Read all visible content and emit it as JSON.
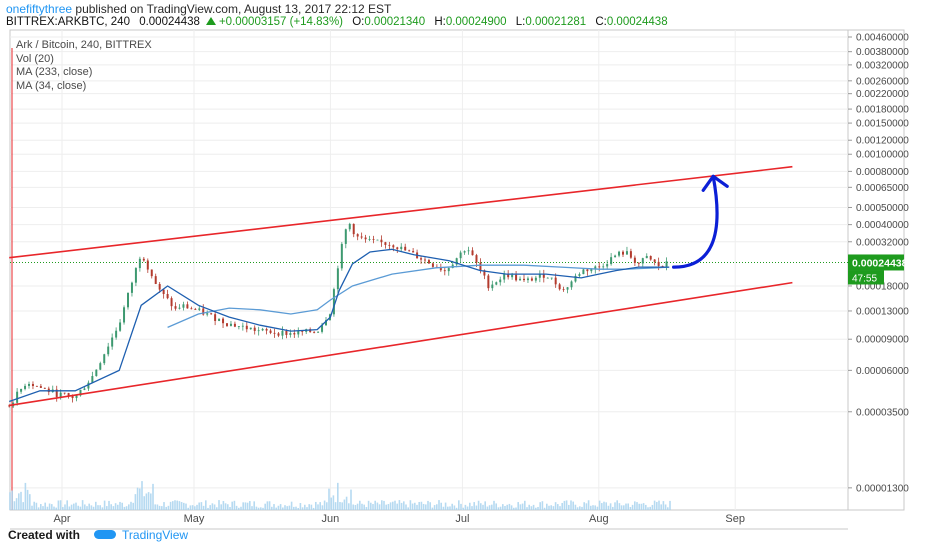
{
  "header": {
    "author": "onefiftythree",
    "published_text": "published on TradingView.com, August 13, 2017 22:12 EST",
    "symbol": "BITTREX:ARKBTC, 240",
    "last": "0.00024438",
    "change": "+0.00003157 (+14.83%)",
    "o_label": "O:",
    "o_value": "0.00021340",
    "h_label": "H:",
    "h_value": "0.00024900",
    "l_label": "L:",
    "l_value": "0.00021281",
    "c_label": "C:",
    "c_value": "0.00024438"
  },
  "legend": {
    "line1": "Ark / Bitcoin, 240, BITTREX",
    "line2": "Vol (20)",
    "line3": "MA (233, close)",
    "line4": "MA (34, close)"
  },
  "price_tag": {
    "value": "0.00024438",
    "countdown": "47:55"
  },
  "footer": {
    "created_with": "Created with",
    "brand": "TradingView"
  },
  "colors": {
    "up": "#3d9970",
    "down": "#b33b2e",
    "ma34": "#1e5fb0",
    "ma233": "#5b9bd5",
    "channel": "#e8262a",
    "arrow": "#0b1fd6",
    "price_tag": "#1e9b1e",
    "volume": "#a9d3ee"
  },
  "chart_data": {
    "type": "line",
    "title": "Ark / Bitcoin, 240, BITTREX",
    "y_scale": "log",
    "ylim": [
      1.2e-05,
      0.0046
    ],
    "y_ticks": [
      "0.00460000",
      "0.00380000",
      "0.00320000",
      "0.00260000",
      "0.00220000",
      "0.00180000",
      "0.00150000",
      "0.00120000",
      "0.00100000",
      "0.00080000",
      "0.00065000",
      "0.00050000",
      "0.00040000",
      "0.00032000",
      "0.00024438",
      "0.00018000",
      "0.00013000",
      "0.00009000",
      "0.00006000",
      "0.00003500",
      "0.00001300"
    ],
    "y_tick_values": [
      0.0046,
      0.0038,
      0.0032,
      0.0026,
      0.0022,
      0.0018,
      0.0015,
      0.0012,
      0.001,
      0.0008,
      0.00065,
      0.0005,
      0.0004,
      0.00032,
      0.00024438,
      0.00018,
      0.00013,
      9e-05,
      6e-05,
      3.5e-05,
      1.3e-05
    ],
    "x_ticks": [
      "Apr",
      "May",
      "Jun",
      "Jul",
      "Aug",
      "Sep"
    ],
    "x_tick_values": [
      0,
      30,
      61,
      91,
      122,
      153
    ],
    "x_unit": "days since Apr 1",
    "series": [
      {
        "name": "Price",
        "x": [
          -12,
          -8,
          -5,
          -1,
          3,
          7,
          13,
          18,
          22,
          24,
          26,
          27,
          31,
          38,
          45,
          52,
          58,
          61,
          63,
          65,
          67,
          70,
          75,
          80,
          87,
          92,
          97,
          101,
          105,
          110,
          114,
          118,
          122,
          126,
          128,
          131,
          133,
          136,
          138
        ],
        "values": [
          3.8e-05,
          5.2e-05,
          4.8e-05,
          4.4e-05,
          4.2e-05,
          5.6e-05,
          0.00011,
          0.00028,
          0.00017,
          0.00015,
          0.00013,
          0.00014,
          0.00013,
          0.00011,
          0.0001,
          9.7e-05,
          0.0001,
          0.00013,
          0.00026,
          0.00042,
          0.00034,
          0.00032,
          0.00031,
          0.00027,
          0.00022,
          0.0003,
          0.00018,
          0.00021,
          0.00019,
          0.00021,
          0.00017,
          0.00022,
          0.00023,
          0.00027,
          0.00028,
          0.00024,
          0.00026,
          0.00023,
          0.00024438
        ]
      },
      {
        "name": "MA (34, close)",
        "x": [
          -12,
          -5,
          3,
          13,
          18,
          24,
          31,
          38,
          45,
          52,
          58,
          61,
          63,
          66,
          70,
          75,
          80,
          88,
          95,
          101,
          110,
          118,
          122,
          126,
          131,
          136,
          138
        ],
        "values": [
          4e-05,
          4.6e-05,
          4.6e-05,
          6e-05,
          0.00014,
          0.00018,
          0.00014,
          0.00012,
          0.000108,
          0.0001,
          0.000102,
          0.00012,
          0.00017,
          0.00024,
          0.00028,
          0.00029,
          0.00027,
          0.00025,
          0.00022,
          0.00021,
          0.00021,
          0.0002,
          0.00021,
          0.00022,
          0.00023,
          0.00023,
          0.00023
        ]
      },
      {
        "name": "MA (233, close)",
        "x": [
          24,
          31,
          38,
          45,
          52,
          58,
          61,
          66,
          75,
          85,
          95,
          105,
          115,
          122,
          128,
          135,
          138
        ],
        "values": [
          0.000105,
          0.000125,
          0.000135,
          0.000132,
          0.000125,
          0.000132,
          0.00015,
          0.00018,
          0.00021,
          0.000228,
          0.000236,
          0.000236,
          0.000229,
          0.000224,
          0.000224,
          0.000228,
          0.00023
        ]
      }
    ],
    "annotations": [
      {
        "type": "channel-line",
        "x": [
          -12,
          166
        ],
        "values": [
          0.00026,
          0.00085
        ]
      },
      {
        "type": "channel-line",
        "x": [
          -12,
          166
        ],
        "values": [
          3.8e-05,
          0.000188
        ]
      },
      {
        "type": "arrow",
        "x": [
          139,
          145,
          148
        ],
        "values": [
          0.00023,
          0.00033,
          0.00075
        ]
      }
    ]
  }
}
